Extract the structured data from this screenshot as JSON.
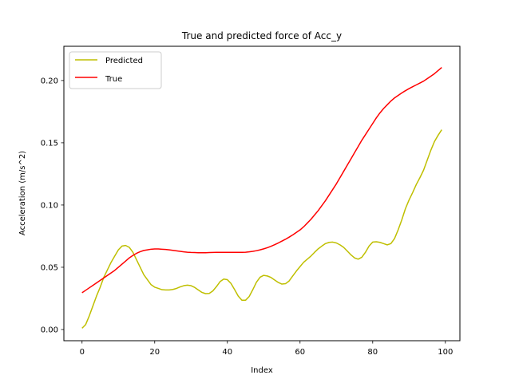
{
  "chart_data": {
    "type": "line",
    "title": "True and predicted force of Acc_y",
    "xlabel": "Index",
    "ylabel": "Acceleration (m/s^2)",
    "xlim": [
      -5,
      104
    ],
    "ylim": [
      -0.009,
      0.2275
    ],
    "xticks": [
      0,
      20,
      40,
      60,
      80,
      100
    ],
    "xtick_labels": [
      "0",
      "20",
      "40",
      "60",
      "80",
      "100"
    ],
    "yticks": [
      0.0,
      0.05,
      0.1,
      0.15,
      0.2
    ],
    "ytick_labels": [
      "0.00",
      "0.05",
      "0.10",
      "0.15",
      "0.20"
    ],
    "legend_position": "top-left",
    "series": [
      {
        "name": "Predicted",
        "color": "#bfbf00",
        "x": [
          0,
          1,
          2,
          3,
          4,
          5,
          6,
          7,
          8,
          9,
          10,
          11,
          12,
          13,
          14,
          15,
          16,
          17,
          18,
          19,
          20,
          21,
          22,
          23,
          24,
          25,
          26,
          27,
          28,
          29,
          30,
          31,
          32,
          33,
          34,
          35,
          36,
          37,
          38,
          39,
          40,
          41,
          42,
          43,
          44,
          45,
          46,
          47,
          48,
          49,
          50,
          51,
          52,
          53,
          54,
          55,
          56,
          57,
          58,
          59,
          60,
          61,
          62,
          63,
          64,
          65,
          66,
          67,
          68,
          69,
          70,
          71,
          72,
          73,
          74,
          75,
          76,
          77,
          78,
          79,
          80,
          81,
          82,
          83,
          84,
          85,
          86,
          87,
          88,
          89,
          90,
          91,
          92,
          93,
          94,
          95,
          96,
          97,
          98,
          99
        ],
        "values": [
          0.001,
          0.004,
          0.011,
          0.019,
          0.027,
          0.034,
          0.042,
          0.048,
          0.054,
          0.059,
          0.064,
          0.067,
          0.0675,
          0.066,
          0.062,
          0.056,
          0.05,
          0.044,
          0.04,
          0.036,
          0.034,
          0.033,
          0.032,
          0.0318,
          0.0318,
          0.0322,
          0.033,
          0.0342,
          0.0352,
          0.0356,
          0.0352,
          0.0338,
          0.0318,
          0.0298,
          0.0288,
          0.029,
          0.031,
          0.0345,
          0.0385,
          0.0405,
          0.04,
          0.037,
          0.032,
          0.0268,
          0.0235,
          0.0235,
          0.0265,
          0.032,
          0.038,
          0.042,
          0.0435,
          0.043,
          0.0418,
          0.0398,
          0.0378,
          0.0365,
          0.0368,
          0.039,
          0.043,
          0.047,
          0.0505,
          0.054,
          0.0565,
          0.059,
          0.062,
          0.0648,
          0.067,
          0.069,
          0.07,
          0.0702,
          0.0695,
          0.068,
          0.066,
          0.063,
          0.06,
          0.0575,
          0.0565,
          0.058,
          0.062,
          0.067,
          0.0702,
          0.0705,
          0.07,
          0.069,
          0.068,
          0.069,
          0.073,
          0.08,
          0.088,
          0.097,
          0.104,
          0.11,
          0.1165,
          0.122,
          0.128,
          0.136,
          0.144,
          0.151,
          0.156,
          0.1605
        ]
      },
      {
        "name": "True",
        "color": "#ff0000",
        "x": [
          0,
          1,
          2,
          3,
          4,
          5,
          6,
          7,
          8,
          9,
          10,
          11,
          12,
          13,
          14,
          15,
          16,
          17,
          18,
          19,
          20,
          21,
          22,
          23,
          24,
          25,
          26,
          27,
          28,
          29,
          30,
          31,
          32,
          33,
          34,
          35,
          36,
          37,
          38,
          39,
          40,
          41,
          42,
          43,
          44,
          45,
          46,
          47,
          48,
          49,
          50,
          51,
          52,
          53,
          54,
          55,
          56,
          57,
          58,
          59,
          60,
          61,
          62,
          63,
          64,
          65,
          66,
          67,
          68,
          69,
          70,
          71,
          72,
          73,
          74,
          75,
          76,
          77,
          78,
          79,
          80,
          81,
          82,
          83,
          84,
          85,
          86,
          87,
          88,
          89,
          90,
          91,
          92,
          93,
          94,
          95,
          96,
          97,
          98,
          99
        ],
        "values": [
          0.0295,
          0.0315,
          0.0335,
          0.0355,
          0.0375,
          0.0395,
          0.0415,
          0.0435,
          0.0455,
          0.0475,
          0.05,
          0.0525,
          0.055,
          0.0575,
          0.0595,
          0.0612,
          0.0625,
          0.0635,
          0.064,
          0.0645,
          0.0647,
          0.0647,
          0.0645,
          0.0643,
          0.064,
          0.0636,
          0.0632,
          0.0628,
          0.0624,
          0.0621,
          0.0619,
          0.0618,
          0.0617,
          0.0617,
          0.0617,
          0.0618,
          0.0619,
          0.062,
          0.062,
          0.062,
          0.062,
          0.062,
          0.062,
          0.062,
          0.062,
          0.0621,
          0.0624,
          0.0628,
          0.0633,
          0.064,
          0.0648,
          0.0657,
          0.0668,
          0.0681,
          0.0695,
          0.071,
          0.0725,
          0.0742,
          0.076,
          0.078,
          0.08,
          0.0825,
          0.0855,
          0.0885,
          0.092,
          0.0955,
          0.0995,
          0.1035,
          0.108,
          0.1125,
          0.117,
          0.122,
          0.127,
          0.132,
          0.137,
          0.142,
          0.147,
          0.152,
          0.1565,
          0.161,
          0.1655,
          0.17,
          0.174,
          0.1775,
          0.1805,
          0.1835,
          0.186,
          0.188,
          0.19,
          0.1918,
          0.1935,
          0.195,
          0.1965,
          0.198,
          0.1995,
          0.2015,
          0.2035,
          0.2055,
          0.208,
          0.2105
        ]
      }
    ]
  }
}
